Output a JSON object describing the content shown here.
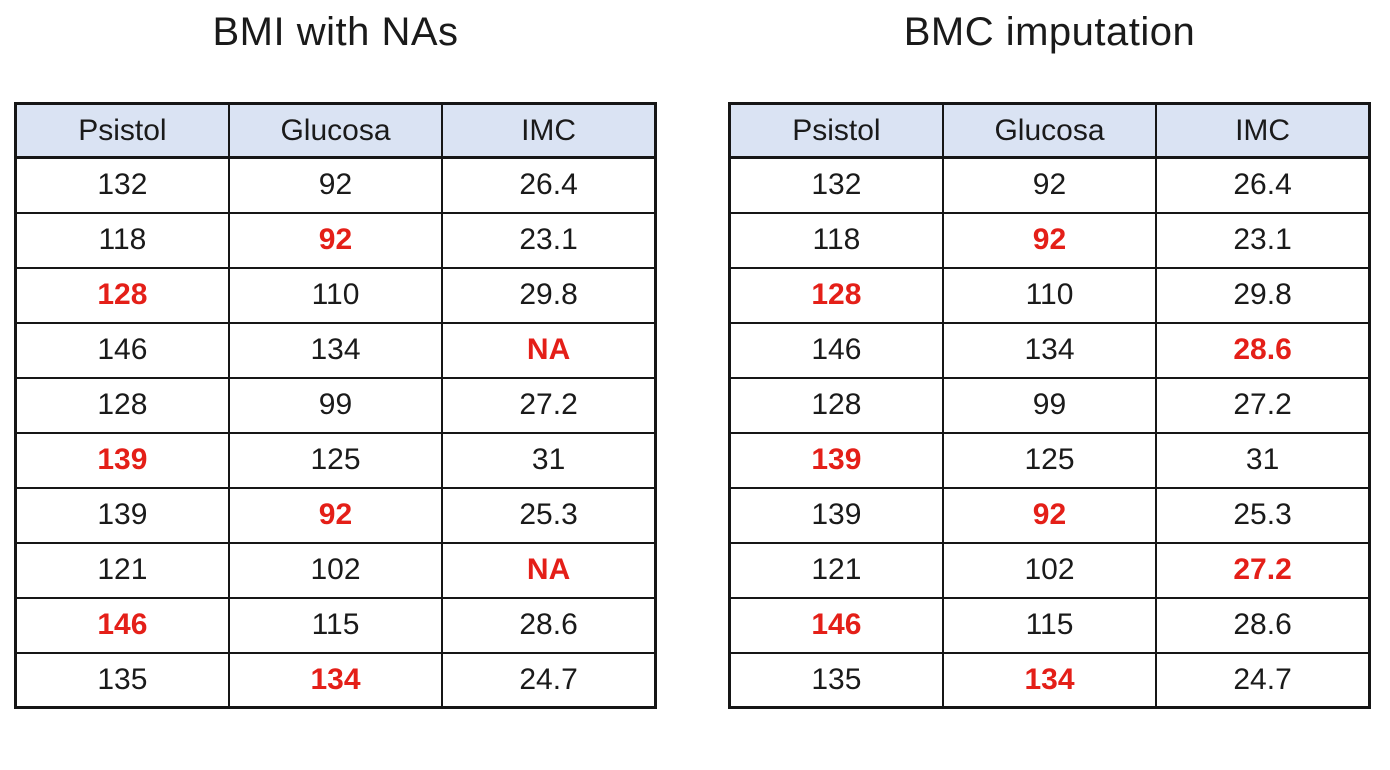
{
  "colors": {
    "header_background": "#dae3f3",
    "highlight_red": "#e41f18",
    "border_black": "#161616",
    "text_ink": "#1a1a1a",
    "page_background": "#ffffff"
  },
  "chart_data": [
    {
      "type": "table",
      "title": "BMI with NAs",
      "columns": [
        "Psistol",
        "Glucosa",
        "IMC"
      ],
      "rows": [
        [
          {
            "text": "132",
            "highlight": false
          },
          {
            "text": "92",
            "highlight": false
          },
          {
            "text": "26.4",
            "highlight": false
          }
        ],
        [
          {
            "text": "118",
            "highlight": false
          },
          {
            "text": "92",
            "highlight": true
          },
          {
            "text": "23.1",
            "highlight": false
          }
        ],
        [
          {
            "text": "128",
            "highlight": true
          },
          {
            "text": "110",
            "highlight": false
          },
          {
            "text": "29.8",
            "highlight": false
          }
        ],
        [
          {
            "text": "146",
            "highlight": false
          },
          {
            "text": "134",
            "highlight": false
          },
          {
            "text": "NA",
            "highlight": true
          }
        ],
        [
          {
            "text": "128",
            "highlight": false
          },
          {
            "text": "99",
            "highlight": false
          },
          {
            "text": "27.2",
            "highlight": false
          }
        ],
        [
          {
            "text": "139",
            "highlight": true
          },
          {
            "text": "125",
            "highlight": false
          },
          {
            "text": "31",
            "highlight": false
          }
        ],
        [
          {
            "text": "139",
            "highlight": false
          },
          {
            "text": "92",
            "highlight": true
          },
          {
            "text": "25.3",
            "highlight": false
          }
        ],
        [
          {
            "text": "121",
            "highlight": false
          },
          {
            "text": "102",
            "highlight": false
          },
          {
            "text": "NA",
            "highlight": true
          }
        ],
        [
          {
            "text": "146",
            "highlight": true
          },
          {
            "text": "115",
            "highlight": false
          },
          {
            "text": "28.6",
            "highlight": false
          }
        ],
        [
          {
            "text": "135",
            "highlight": false
          },
          {
            "text": "134",
            "highlight": true
          },
          {
            "text": "24.7",
            "highlight": false
          }
        ]
      ]
    },
    {
      "type": "table",
      "title": "BMC imputation",
      "columns": [
        "Psistol",
        "Glucosa",
        "IMC"
      ],
      "rows": [
        [
          {
            "text": "132",
            "highlight": false
          },
          {
            "text": "92",
            "highlight": false
          },
          {
            "text": "26.4",
            "highlight": false
          }
        ],
        [
          {
            "text": "118",
            "highlight": false
          },
          {
            "text": "92",
            "highlight": true
          },
          {
            "text": "23.1",
            "highlight": false
          }
        ],
        [
          {
            "text": "128",
            "highlight": true
          },
          {
            "text": "110",
            "highlight": false
          },
          {
            "text": "29.8",
            "highlight": false
          }
        ],
        [
          {
            "text": "146",
            "highlight": false
          },
          {
            "text": "134",
            "highlight": false
          },
          {
            "text": "28.6",
            "highlight": true
          }
        ],
        [
          {
            "text": "128",
            "highlight": false
          },
          {
            "text": "99",
            "highlight": false
          },
          {
            "text": "27.2",
            "highlight": false
          }
        ],
        [
          {
            "text": "139",
            "highlight": true
          },
          {
            "text": "125",
            "highlight": false
          },
          {
            "text": "31",
            "highlight": false
          }
        ],
        [
          {
            "text": "139",
            "highlight": false
          },
          {
            "text": "92",
            "highlight": true
          },
          {
            "text": "25.3",
            "highlight": false
          }
        ],
        [
          {
            "text": "121",
            "highlight": false
          },
          {
            "text": "102",
            "highlight": false
          },
          {
            "text": "27.2",
            "highlight": true
          }
        ],
        [
          {
            "text": "146",
            "highlight": true
          },
          {
            "text": "115",
            "highlight": false
          },
          {
            "text": "28.6",
            "highlight": false
          }
        ],
        [
          {
            "text": "135",
            "highlight": false
          },
          {
            "text": "134",
            "highlight": true
          },
          {
            "text": "24.7",
            "highlight": false
          }
        ]
      ]
    }
  ]
}
